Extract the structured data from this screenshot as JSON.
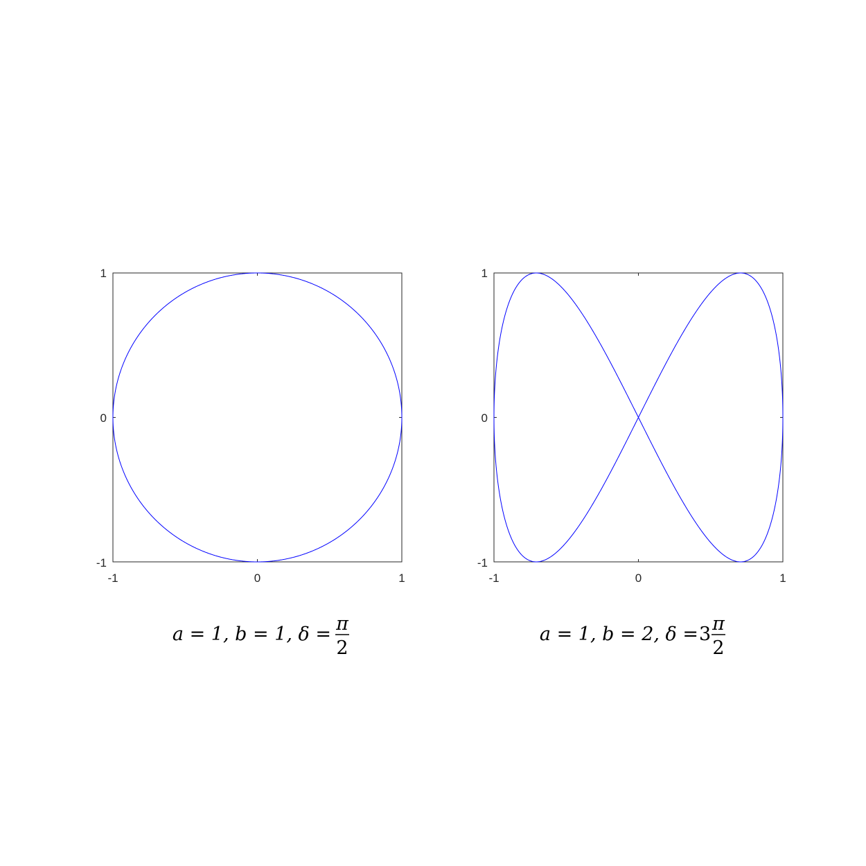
{
  "colors": {
    "line": "#0000ff",
    "axes": "#262626",
    "background": "#ffffff"
  },
  "chart_data": [
    {
      "type": "line",
      "title": "",
      "xlabel": "",
      "ylabel": "",
      "xlim": [
        -1,
        1
      ],
      "ylim": [
        -1,
        1
      ],
      "xticks": [
        "-1",
        "0",
        "1"
      ],
      "yticks": [
        "-1",
        "0",
        "1"
      ],
      "grid": false,
      "curve": "Lissajous x = sin(a·t + δ), y = sin(b·t)",
      "params": {
        "a": 1,
        "b": 1,
        "delta": 1.5708
      },
      "caption": {
        "lhs": "a = 1, b = 1, δ =",
        "coef": "",
        "numerator": "π",
        "denominator": "2"
      }
    },
    {
      "type": "line",
      "title": "",
      "xlabel": "",
      "ylabel": "",
      "xlim": [
        -1,
        1
      ],
      "ylim": [
        -1,
        1
      ],
      "xticks": [
        "-1",
        "0",
        "1"
      ],
      "yticks": [
        "-1",
        "0",
        "1"
      ],
      "grid": false,
      "curve": "Lissajous x = sin(a·t + δ), y = sin(b·t)",
      "params": {
        "a": 1,
        "b": 2,
        "delta": 4.7124
      },
      "caption": {
        "lhs": "a = 1, b = 2, δ = ",
        "coef": "3",
        "numerator": "π",
        "denominator": "2"
      }
    }
  ]
}
